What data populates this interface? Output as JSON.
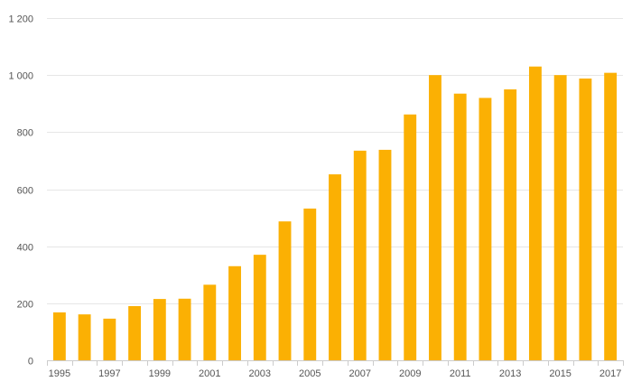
{
  "chart_data": {
    "type": "bar",
    "title": "",
    "xlabel": "",
    "ylabel": "",
    "categories": [
      "1995",
      "1996",
      "1997",
      "1998",
      "1999",
      "2000",
      "2001",
      "2002",
      "2003",
      "2004",
      "2005",
      "2006",
      "2007",
      "2008",
      "2009",
      "2010",
      "2011",
      "2012",
      "2013",
      "2014",
      "2015",
      "2016",
      "2017"
    ],
    "x_tick_labels": [
      "1995",
      "1997",
      "1999",
      "2001",
      "2003",
      "2005",
      "2007",
      "2009",
      "2011",
      "2013",
      "2015",
      "2017"
    ],
    "values": [
      168,
      161,
      146,
      190,
      215,
      216,
      265,
      330,
      370,
      487,
      532,
      652,
      735,
      738,
      862,
      1000,
      935,
      920,
      950,
      1030,
      1000,
      988,
      1008
    ],
    "ylim": [
      0,
      1200
    ],
    "y_ticks": [
      0,
      200,
      400,
      600,
      800,
      1000,
      1200
    ],
    "y_tick_labels": [
      "0",
      "200",
      "400",
      "600",
      "800",
      "1 000",
      "1 200"
    ],
    "grid": true,
    "legend": "none",
    "bar_color": "#fbb003"
  }
}
